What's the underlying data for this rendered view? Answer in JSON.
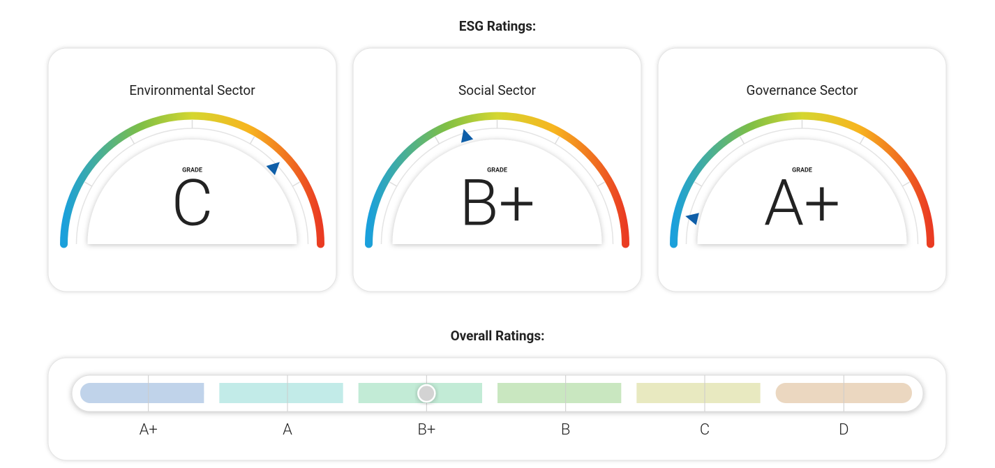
{
  "title": "ESG Ratings:",
  "gauges": [
    {
      "title": "Environmental Sector",
      "label": "GRADE",
      "grade": "C",
      "pointer": 0.76
    },
    {
      "title": "Social Sector",
      "label": "GRADE",
      "grade": "B+",
      "pointer": 0.41
    },
    {
      "title": "Governance Sector",
      "label": "GRADE",
      "grade": "A+",
      "pointer": 0.075
    }
  ],
  "overall": {
    "title": "Overall Ratings:",
    "levels": [
      "A+",
      "A",
      "B+",
      "B",
      "C",
      "D"
    ],
    "marker": 2
  }
}
